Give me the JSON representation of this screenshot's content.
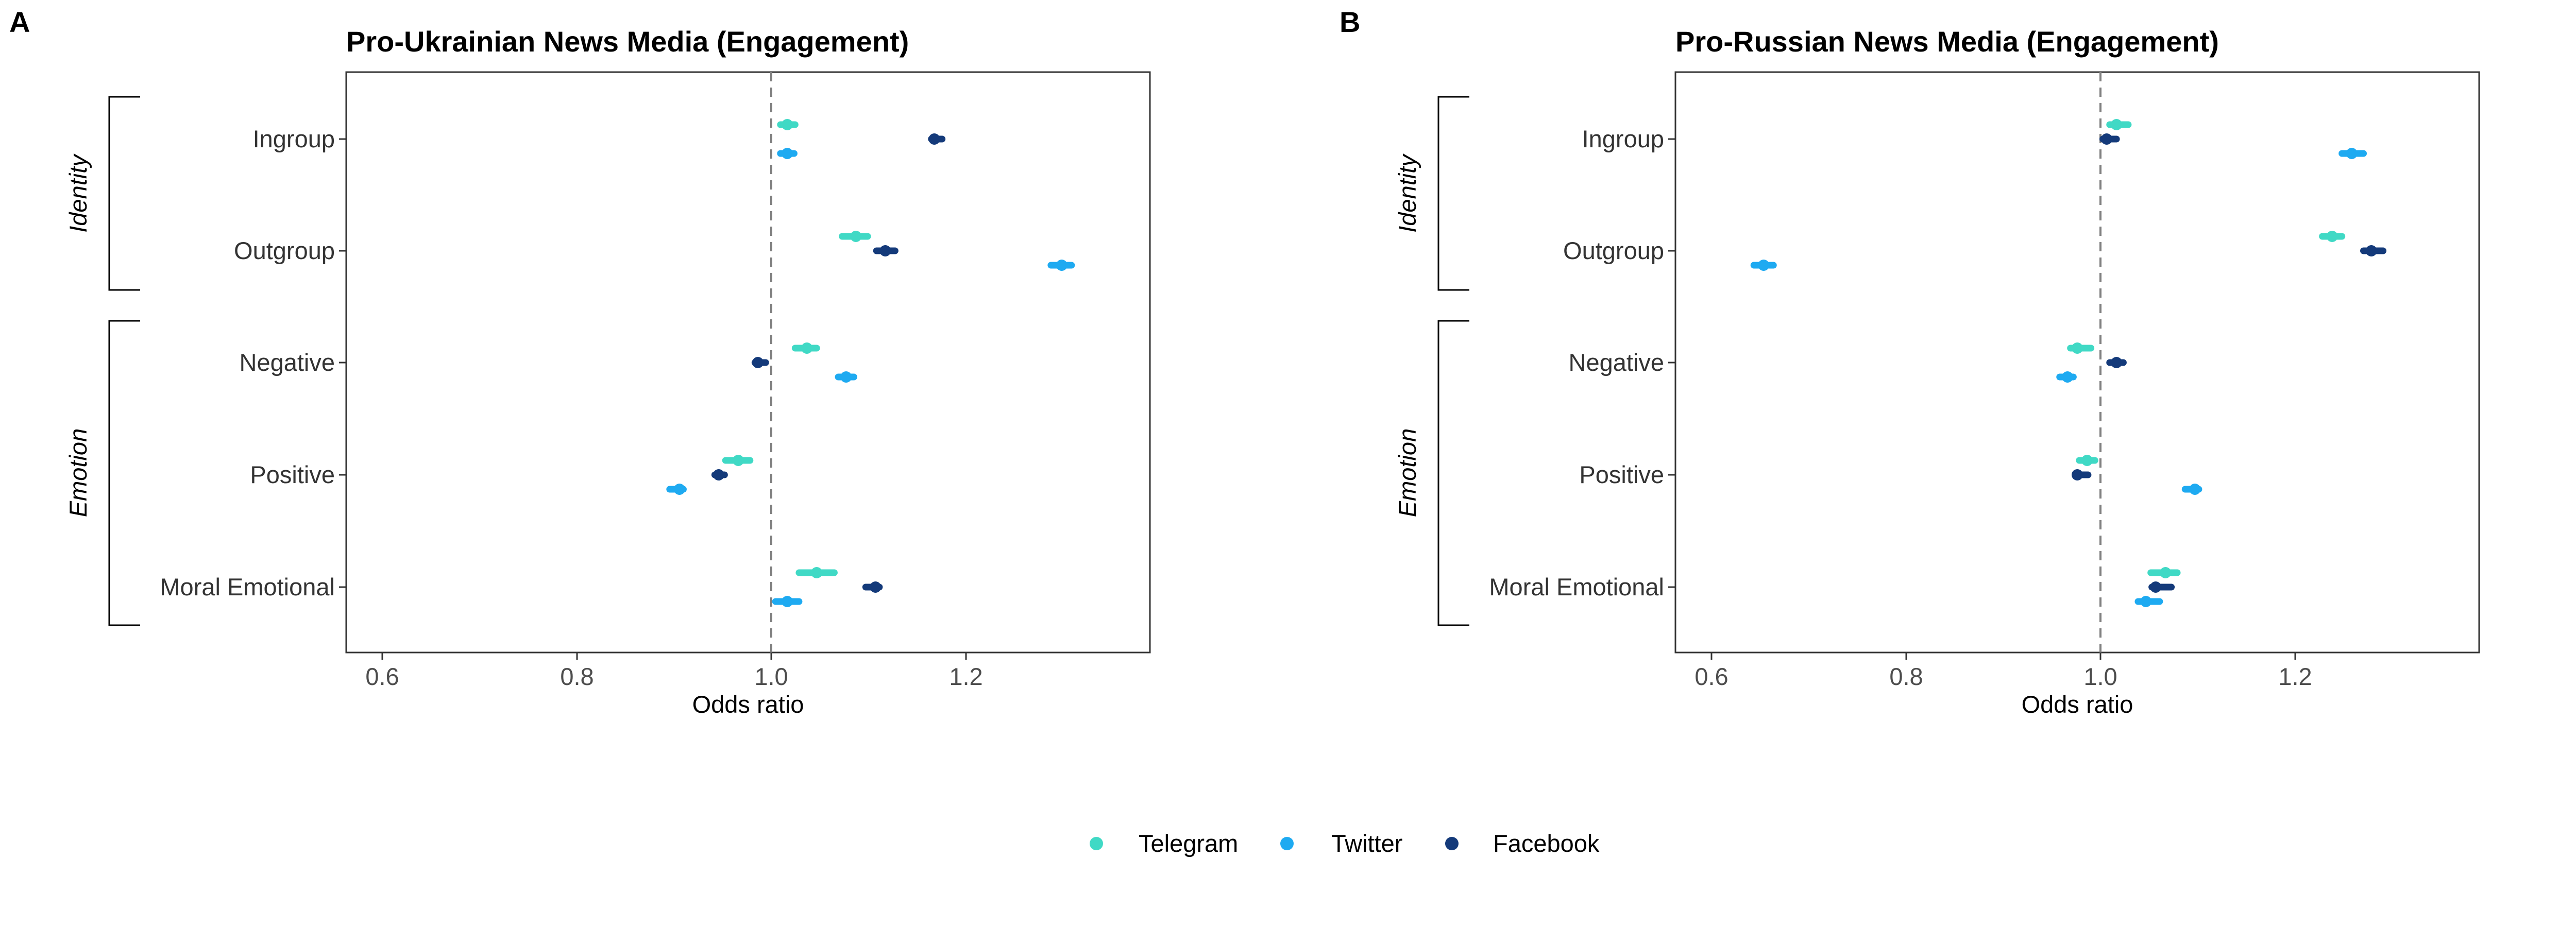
{
  "panels": [
    {
      "letter": "A",
      "title": "Pro-Ukrainian News Media (Engagement)"
    },
    {
      "letter": "B",
      "title": "Pro-Russian News Media (Engagement)"
    }
  ],
  "groups": [
    "Identity",
    "Emotion"
  ],
  "colors": {
    "Telegram": "#40d9c5",
    "Twitter": "#1eaaf1",
    "Facebook": "#143a7a"
  },
  "chart_data": [
    {
      "type": "scatter",
      "title": "Pro-Ukrainian News Media (Engagement)",
      "xlabel": "Odds ratio",
      "ylabel": "",
      "xlim": [
        0.56,
        1.38
      ],
      "x_ticks": [
        "0.6",
        "0.8",
        "1.0",
        "1.2"
      ],
      "reference_line": 1.0,
      "categories": [
        "Ingroup",
        "Outgroup",
        "Negative",
        "Positive",
        "Moral Emotional"
      ],
      "series": [
        {
          "name": "Telegram",
          "values": [
            1.01,
            1.08,
            1.03,
            0.96,
            1.04
          ],
          "ci_low": [
            1.003,
            1.066,
            1.018,
            0.947,
            1.022
          ],
          "ci_high": [
            1.018,
            1.092,
            1.04,
            0.972,
            1.058
          ]
        },
        {
          "name": "Twitter",
          "values": [
            1.01,
            1.29,
            1.07,
            0.9,
            1.01
          ],
          "ci_low": [
            1.003,
            1.279,
            1.062,
            0.89,
            0.998
          ],
          "ci_high": [
            1.017,
            1.3,
            1.078,
            0.904,
            1.022
          ]
        },
        {
          "name": "Facebook",
          "values": [
            1.16,
            1.11,
            0.98,
            0.94,
            1.1
          ],
          "ci_low": [
            1.157,
            1.101,
            0.977,
            0.936,
            1.09
          ],
          "ci_high": [
            1.168,
            1.12,
            0.988,
            0.946,
            1.104
          ]
        }
      ],
      "grid": false,
      "legend": "bottom"
    },
    {
      "type": "scatter",
      "title": "Pro-Russian News Media (Engagement)",
      "xlabel": "Odds ratio",
      "ylabel": "",
      "xlim": [
        0.56,
        1.38
      ],
      "x_ticks": [
        "0.6",
        "0.8",
        "1.0",
        "1.2"
      ],
      "reference_line": 1.0,
      "categories": [
        "Ingroup",
        "Outgroup",
        "Negative",
        "Positive",
        "Moral Emotional"
      ],
      "series": [
        {
          "name": "Telegram",
          "values": [
            1.01,
            1.23,
            0.97,
            0.98,
            1.06
          ],
          "ci_low": [
            1.003,
            1.22,
            0.963,
            0.972,
            1.045
          ],
          "ci_high": [
            1.022,
            1.24,
            0.984,
            0.988,
            1.072
          ]
        },
        {
          "name": "Twitter",
          "values": [
            1.25,
            0.65,
            0.96,
            1.09,
            1.04
          ],
          "ci_low": [
            1.24,
            0.64,
            0.952,
            1.08,
            1.032
          ],
          "ci_high": [
            1.262,
            0.66,
            0.966,
            1.094,
            1.054
          ]
        },
        {
          "name": "Facebook",
          "values": [
            1.0,
            1.27,
            1.01,
            0.97,
            1.05
          ],
          "ci_low": [
            0.996,
            1.262,
            1.003,
            0.968,
            1.046
          ],
          "ci_high": [
            1.01,
            1.282,
            1.017,
            0.981,
            1.066
          ]
        }
      ],
      "grid": false,
      "legend": "bottom"
    }
  ],
  "legend": {
    "items": [
      "Telegram",
      "Twitter",
      "Facebook"
    ]
  }
}
